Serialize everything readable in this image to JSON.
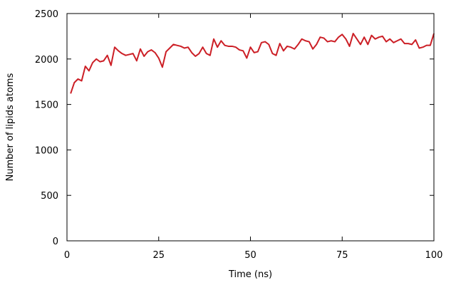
{
  "chart_data": {
    "type": "line",
    "title": "",
    "xlabel": "Time (ns)",
    "ylabel": "Number of lipids atoms",
    "xlim": [
      0,
      100
    ],
    "ylim": [
      0,
      2500
    ],
    "xticks": [
      0,
      25,
      50,
      75,
      100
    ],
    "yticks": [
      0,
      500,
      1000,
      1500,
      2000,
      2500
    ],
    "grid": false,
    "legend": "none",
    "series": [
      {
        "color": "#cc1f26",
        "x": [
          1,
          2,
          3,
          4,
          5,
          6,
          7,
          8,
          9,
          10,
          11,
          12,
          13,
          14,
          15,
          16,
          17,
          18,
          19,
          20,
          21,
          22,
          23,
          24,
          25,
          26,
          27,
          28,
          29,
          30,
          31,
          32,
          33,
          34,
          35,
          36,
          37,
          38,
          39,
          40,
          41,
          42,
          43,
          44,
          45,
          46,
          47,
          48,
          49,
          50,
          51,
          52,
          53,
          54,
          55,
          56,
          57,
          58,
          59,
          60,
          61,
          62,
          63,
          64,
          65,
          66,
          67,
          68,
          69,
          70,
          71,
          72,
          73,
          74,
          75,
          76,
          77,
          78,
          79,
          80,
          81,
          82,
          83,
          84,
          85,
          86,
          87,
          88,
          89,
          90,
          91,
          92,
          93,
          94,
          95,
          96,
          97,
          98,
          99,
          100
        ],
        "y": [
          1620,
          1740,
          1780,
          1760,
          1920,
          1870,
          1960,
          2000,
          1970,
          1980,
          2040,
          1930,
          2130,
          2090,
          2060,
          2040,
          2050,
          2060,
          1980,
          2110,
          2030,
          2080,
          2100,
          2070,
          2010,
          1910,
          2080,
          2120,
          2160,
          2150,
          2140,
          2120,
          2130,
          2070,
          2030,
          2060,
          2130,
          2060,
          2040,
          2220,
          2130,
          2200,
          2150,
          2140,
          2140,
          2130,
          2100,
          2090,
          2010,
          2130,
          2070,
          2080,
          2180,
          2190,
          2160,
          2060,
          2040,
          2170,
          2090,
          2140,
          2130,
          2110,
          2160,
          2220,
          2200,
          2190,
          2110,
          2160,
          2240,
          2230,
          2190,
          2200,
          2190,
          2240,
          2270,
          2220,
          2140,
          2280,
          2220,
          2160,
          2240,
          2160,
          2260,
          2220,
          2240,
          2250,
          2190,
          2220,
          2180,
          2200,
          2220,
          2170,
          2170,
          2160,
          2210,
          2120,
          2130,
          2150,
          2150,
          2280
        ]
      }
    ]
  }
}
